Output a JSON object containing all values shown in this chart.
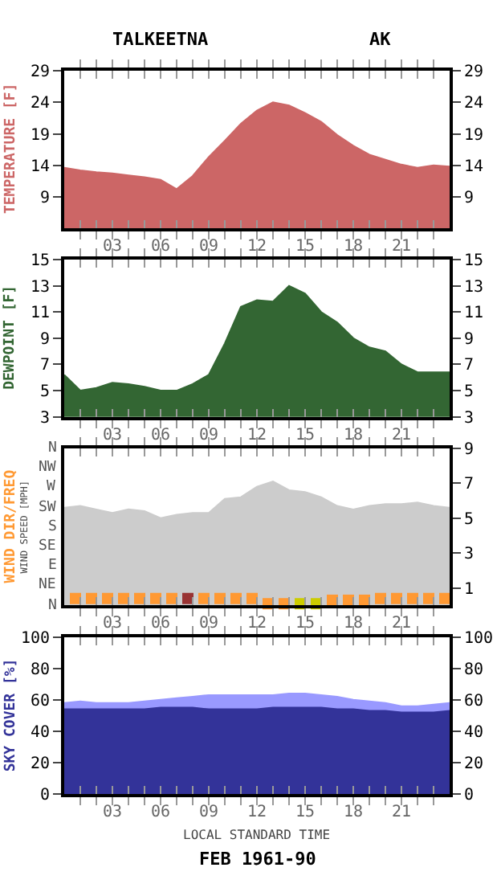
{
  "chart_data": [
    {
      "type": "area",
      "title": "TALKEETNA",
      "subtitle": "AK",
      "ylabel": "TEMPERATURE [F]",
      "xlim": [
        0,
        24
      ],
      "xticks": [
        {
          "value": 1,
          "label": null
        },
        {
          "value": 2,
          "label": null
        },
        {
          "value": 3,
          "label": "03"
        },
        {
          "value": 4,
          "label": null
        },
        {
          "value": 5,
          "label": null
        },
        {
          "value": 6,
          "label": "06"
        },
        {
          "value": 7,
          "label": null
        },
        {
          "value": 8,
          "label": null
        },
        {
          "value": 9,
          "label": "09"
        },
        {
          "value": 10,
          "label": null
        },
        {
          "value": 11,
          "label": null
        },
        {
          "value": 12,
          "label": "12"
        },
        {
          "value": 13,
          "label": null
        },
        {
          "value": 14,
          "label": null
        },
        {
          "value": 15,
          "label": "15"
        },
        {
          "value": 16,
          "label": null
        },
        {
          "value": 17,
          "label": null
        },
        {
          "value": 18,
          "label": "18"
        },
        {
          "value": 19,
          "label": null
        },
        {
          "value": 20,
          "label": null
        },
        {
          "value": 21,
          "label": "21"
        },
        {
          "value": 22,
          "label": null
        },
        {
          "value": 23,
          "label": null
        }
      ],
      "ylim": [
        4,
        29
      ],
      "yticks": [
        9,
        14,
        19,
        24,
        29
      ],
      "y2lim": [
        4,
        29
      ],
      "y2ticks": [
        9,
        14,
        19,
        24,
        29
      ],
      "x": [
        0,
        1,
        2,
        3,
        4,
        5,
        6,
        7,
        8,
        9,
        10,
        11,
        12,
        13,
        14,
        15,
        16,
        17,
        18,
        19,
        20,
        21,
        22,
        23,
        24
      ],
      "series": [
        {
          "color": "#cc6666",
          "values": [
            13.6,
            13.2,
            12.9,
            12.7,
            12.4,
            12.1,
            11.7,
            10.2,
            12.3,
            15.3,
            17.9,
            20.6,
            22.7,
            24.0,
            23.5,
            22.3,
            20.9,
            18.8,
            17.1,
            15.7,
            14.9,
            14.1,
            13.6,
            14.0,
            13.8
          ]
        }
      ]
    },
    {
      "type": "area",
      "ylabel": "DEWPOINT [F]",
      "xlim": [
        0,
        24
      ],
      "xticks": [
        {
          "value": 1,
          "label": null
        },
        {
          "value": 2,
          "label": null
        },
        {
          "value": 3,
          "label": "03"
        },
        {
          "value": 4,
          "label": null
        },
        {
          "value": 5,
          "label": null
        },
        {
          "value": 6,
          "label": "06"
        },
        {
          "value": 7,
          "label": null
        },
        {
          "value": 8,
          "label": null
        },
        {
          "value": 9,
          "label": "09"
        },
        {
          "value": 10,
          "label": null
        },
        {
          "value": 11,
          "label": null
        },
        {
          "value": 12,
          "label": "12"
        },
        {
          "value": 13,
          "label": null
        },
        {
          "value": 14,
          "label": null
        },
        {
          "value": 15,
          "label": "15"
        },
        {
          "value": 16,
          "label": null
        },
        {
          "value": 17,
          "label": null
        },
        {
          "value": 18,
          "label": "18"
        },
        {
          "value": 19,
          "label": null
        },
        {
          "value": 20,
          "label": null
        },
        {
          "value": 21,
          "label": "21"
        },
        {
          "value": 22,
          "label": null
        },
        {
          "value": 23,
          "label": null
        }
      ],
      "ylim": [
        3,
        15
      ],
      "yticks": [
        3,
        5,
        7,
        9,
        11,
        13,
        15
      ],
      "y2lim": [
        3,
        15
      ],
      "y2ticks": [
        3,
        5,
        7,
        9,
        11,
        13,
        15
      ],
      "x": [
        0,
        1,
        2,
        3,
        4,
        5,
        6,
        7,
        8,
        9,
        10,
        11,
        12,
        13,
        14,
        15,
        16,
        17,
        18,
        19,
        20,
        21,
        22,
        23,
        24
      ],
      "series": [
        {
          "color": "#336633",
          "values": [
            6.2,
            5.0,
            5.2,
            5.6,
            5.5,
            5.3,
            5.0,
            5.0,
            5.5,
            6.2,
            8.6,
            11.4,
            11.9,
            11.8,
            13.0,
            12.4,
            11.0,
            10.2,
            9.0,
            8.3,
            8.0,
            7.0,
            6.4,
            6.4,
            6.4
          ]
        }
      ]
    },
    {
      "type": "area",
      "ylabel": "WIND DIR/FREQ",
      "y2label": "WIND SPEED [MPH]",
      "annotations": [
        "N",
        "NW",
        "W",
        "SW",
        "S",
        "SE",
        "E",
        "NE",
        "N"
      ],
      "xlim": [
        0,
        24
      ],
      "xticks": [
        {
          "value": 1,
          "label": null
        },
        {
          "value": 2,
          "label": null
        },
        {
          "value": 3,
          "label": "03"
        },
        {
          "value": 4,
          "label": null
        },
        {
          "value": 5,
          "label": null
        },
        {
          "value": 6,
          "label": "06"
        },
        {
          "value": 7,
          "label": null
        },
        {
          "value": 8,
          "label": null
        },
        {
          "value": 9,
          "label": "09"
        },
        {
          "value": 10,
          "label": null
        },
        {
          "value": 11,
          "label": null
        },
        {
          "value": 12,
          "label": "12"
        },
        {
          "value": 13,
          "label": null
        },
        {
          "value": 14,
          "label": null
        },
        {
          "value": 15,
          "label": "15"
        },
        {
          "value": 16,
          "label": null
        },
        {
          "value": 17,
          "label": null
        },
        {
          "value": 18,
          "label": "18"
        },
        {
          "value": 19,
          "label": null
        },
        {
          "value": 20,
          "label": null
        },
        {
          "value": 21,
          "label": "21"
        },
        {
          "value": 22,
          "label": null
        },
        {
          "value": 23,
          "label": null
        }
      ],
      "y2lim": [
        0,
        9
      ],
      "y2ticks": [
        1,
        3,
        5,
        7,
        9
      ],
      "x": [
        0,
        1,
        2,
        3,
        4,
        5,
        6,
        7,
        8,
        9,
        10,
        11,
        12,
        13,
        14,
        15,
        16,
        17,
        18,
        19,
        20,
        21,
        22,
        23,
        24
      ],
      "series": [
        {
          "color": "#cccccc",
          "axis": "y2",
          "values": [
            5.6,
            5.7,
            5.5,
            5.3,
            5.5,
            5.4,
            5.0,
            5.2,
            5.3,
            5.3,
            6.1,
            6.2,
            6.8,
            7.1,
            6.6,
            6.5,
            6.2,
            5.7,
            5.5,
            5.7,
            5.8,
            5.8,
            5.9,
            5.7,
            5.6
          ]
        },
        {
          "type": "scatter",
          "marker": "square",
          "axis": "y2",
          "color": "#ff9933",
          "x": [
            0.7,
            1.7,
            2.7,
            3.7,
            4.7,
            5.7,
            6.7,
            7.7,
            8.7,
            9.7,
            10.7,
            11.7,
            12.7,
            13.7,
            14.7,
            15.7,
            16.7,
            17.7,
            18.7,
            19.7,
            20.7,
            21.7,
            22.7,
            23.7
          ],
          "values": [
            0.4,
            0.4,
            0.4,
            0.4,
            0.4,
            0.4,
            0.4,
            0.4,
            0.4,
            0.4,
            0.4,
            0.4,
            0.1,
            0.1,
            0.1,
            0.1,
            0.3,
            0.3,
            0.3,
            0.4,
            0.4,
            0.4,
            0.4,
            0.4
          ],
          "colors": [
            "#ff9933",
            "#ff9933",
            "#ff9933",
            "#ff9933",
            "#ff9933",
            "#ff9933",
            "#ff9933",
            "#993333",
            "#ff9933",
            "#ff9933",
            "#ff9933",
            "#ff9933",
            "#ff9933",
            "#ff9933",
            "#cccc00",
            "#cccc00",
            "#ff9933",
            "#ff9933",
            "#ff9933",
            "#ff9933",
            "#ff9933",
            "#ff9933",
            "#ff9933",
            "#ff9933"
          ]
        }
      ]
    },
    {
      "type": "area",
      "ylabel": "SKY COVER [%]",
      "xlabel": "LOCAL STANDARD TIME",
      "annotations": [
        "FEB 1961-90"
      ],
      "xlim": [
        0,
        24
      ],
      "xticks": [
        {
          "value": 1,
          "label": null
        },
        {
          "value": 2,
          "label": null
        },
        {
          "value": 3,
          "label": "03"
        },
        {
          "value": 4,
          "label": null
        },
        {
          "value": 5,
          "label": null
        },
        {
          "value": 6,
          "label": "06"
        },
        {
          "value": 7,
          "label": null
        },
        {
          "value": 8,
          "label": null
        },
        {
          "value": 9,
          "label": "09"
        },
        {
          "value": 10,
          "label": null
        },
        {
          "value": 11,
          "label": null
        },
        {
          "value": 12,
          "label": "12"
        },
        {
          "value": 13,
          "label": null
        },
        {
          "value": 14,
          "label": null
        },
        {
          "value": 15,
          "label": "15"
        },
        {
          "value": 16,
          "label": null
        },
        {
          "value": 17,
          "label": null
        },
        {
          "value": 18,
          "label": "18"
        },
        {
          "value": 19,
          "label": null
        },
        {
          "value": 20,
          "label": null
        },
        {
          "value": 21,
          "label": "21"
        },
        {
          "value": 22,
          "label": null
        },
        {
          "value": 23,
          "label": null
        }
      ],
      "ylim": [
        0,
        100
      ],
      "yticks": [
        0,
        20,
        40,
        60,
        80,
        100
      ],
      "y2lim": [
        0,
        100
      ],
      "y2ticks": [
        0,
        20,
        40,
        60,
        80,
        100
      ],
      "x": [
        0,
        1,
        2,
        3,
        4,
        5,
        6,
        7,
        8,
        9,
        10,
        11,
        12,
        13,
        14,
        15,
        16,
        17,
        18,
        19,
        20,
        21,
        22,
        23,
        24
      ],
      "series": [
        {
          "color": "#9999ff",
          "values": [
            58,
            59,
            58,
            58,
            58,
            59,
            60,
            61,
            62,
            63,
            63,
            63,
            63,
            63,
            64,
            64,
            63,
            62,
            60,
            59,
            58,
            56,
            56,
            57,
            58
          ]
        },
        {
          "color": "#333399",
          "values": [
            54,
            54,
            54,
            54,
            54,
            54,
            55,
            55,
            55,
            54,
            54,
            54,
            54,
            55,
            55,
            55,
            55,
            54,
            54,
            53,
            53,
            52,
            52,
            52,
            53
          ]
        }
      ]
    }
  ]
}
